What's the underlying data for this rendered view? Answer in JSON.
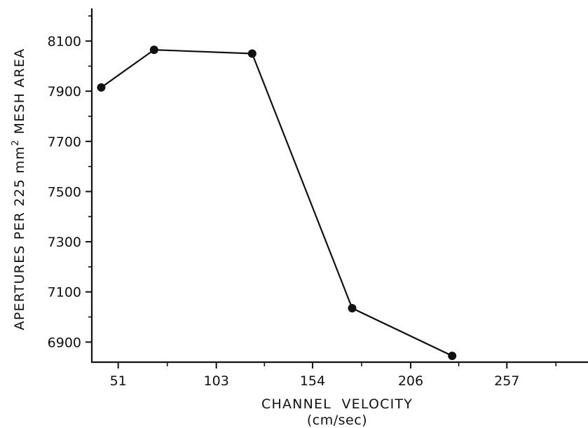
{
  "chart_data": {
    "type": "line",
    "title": "",
    "xlabel": "CHANNEL  VELOCITY",
    "xlabel_unit": "(cm/sec)",
    "ylabel": {
      "before": "APERTURES PER 225 mm",
      "superscript": "2",
      "after": " MESH AREA"
    },
    "xlim": [
      37,
      300
    ],
    "ylim": [
      6820,
      8230
    ],
    "x_ticks": [
      51,
      103,
      154,
      206,
      257
    ],
    "y_ticks": [
      6900,
      7100,
      7300,
      7500,
      7700,
      7900,
      8100
    ],
    "grid": false,
    "line_color": "#111111",
    "series": [
      {
        "x": [
          42,
          70,
          122,
          175,
          228
        ],
        "y": [
          7915,
          8065,
          8050,
          7035,
          6845
        ]
      }
    ]
  }
}
